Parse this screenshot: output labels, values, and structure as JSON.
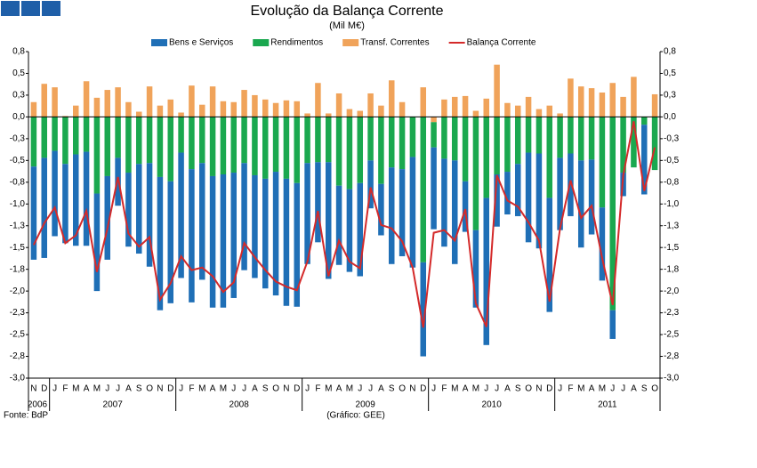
{
  "chart_data": {
    "type": "bar",
    "title": "Evolução da Balança Corrente",
    "subtitle": "(Mil M€)",
    "source": "Fonte: BdP",
    "credit": "(Gráfico: GEE)",
    "categories": [
      "N",
      "D",
      "J",
      "F",
      "M",
      "A",
      "M",
      "J",
      "J",
      "A",
      "S",
      "O",
      "N",
      "D",
      "J",
      "F",
      "M",
      "A",
      "M",
      "J",
      "J",
      "A",
      "S",
      "O",
      "N",
      "D",
      "J",
      "F",
      "M",
      "A",
      "M",
      "J",
      "J",
      "A",
      "S",
      "O",
      "N",
      "D",
      "J",
      "F",
      "M",
      "A",
      "M",
      "J",
      "J",
      "A",
      "S",
      "O",
      "N",
      "D",
      "J",
      "F",
      "M",
      "A",
      "M",
      "J",
      "J",
      "A",
      "S",
      "O"
    ],
    "year_groups": [
      {
        "label": "2006",
        "months": 2
      },
      {
        "label": "2007",
        "months": 12
      },
      {
        "label": "2008",
        "months": 12
      },
      {
        "label": "2009",
        "months": 12
      },
      {
        "label": "2010",
        "months": 12
      },
      {
        "label": "2011",
        "months": 10
      }
    ],
    "series": [
      {
        "name": "Bens e Serviços",
        "color": "#1f6fb6",
        "values": [
          -1.07,
          -1.15,
          -0.98,
          -0.91,
          -1.05,
          -1.08,
          -1.12,
          -0.96,
          -0.55,
          -0.85,
          -1.03,
          -1.19,
          -1.53,
          -1.4,
          -1.44,
          -1.53,
          -1.34,
          -1.51,
          -1.53,
          -1.44,
          -1.23,
          -1.18,
          -1.26,
          -1.42,
          -1.46,
          -1.42,
          -1.16,
          -0.92,
          -1.34,
          -0.91,
          -0.95,
          -1.07,
          -0.55,
          -0.59,
          -1.11,
          -1.0,
          -1.27,
          -1.08,
          -0.94,
          -1.01,
          -1.19,
          -0.58,
          -0.89,
          -1.69,
          -0.6,
          -0.49,
          -0.6,
          -1.03,
          -1.09,
          -1.31,
          -0.83,
          -0.72,
          -1.0,
          -0.86,
          -0.84,
          -0.33,
          -0.27,
          0,
          -0.8,
          0
        ]
      },
      {
        "name": "Rendimentos",
        "color": "#1aa84f",
        "values": [
          -0.57,
          -0.47,
          -0.39,
          -0.54,
          -0.43,
          -0.4,
          -0.88,
          -0.68,
          -0.47,
          -0.64,
          -0.54,
          -0.53,
          -0.69,
          -0.74,
          -0.41,
          -0.6,
          -0.53,
          -0.68,
          -0.66,
          -0.64,
          -0.53,
          -0.67,
          -0.71,
          -0.63,
          -0.71,
          -0.76,
          -0.53,
          -0.52,
          -0.52,
          -0.79,
          -0.83,
          -0.76,
          -0.5,
          -0.77,
          -0.58,
          -0.6,
          -0.46,
          -1.67,
          -0.29,
          -0.48,
          -0.5,
          -0.74,
          -1.3,
          -0.93,
          -0.66,
          -0.63,
          -0.54,
          -0.41,
          -0.42,
          -0.93,
          -0.47,
          -0.42,
          -0.5,
          -0.49,
          -1.04,
          -2.22,
          -0.64,
          -0.58,
          -0.09,
          -0.61
        ]
      },
      {
        "name": "Transf. Correntes",
        "color": "#f0a35a",
        "values": [
          0.17,
          0.38,
          0.34,
          0.01,
          0.13,
          0.41,
          0.22,
          0.31,
          0.34,
          0.17,
          0.06,
          0.35,
          0.13,
          0.2,
          0.05,
          0.36,
          0.14,
          0.35,
          0.18,
          0.17,
          0.31,
          0.25,
          0.2,
          0.16,
          0.19,
          0.18,
          0.04,
          0.39,
          0.04,
          0.27,
          0.09,
          0.07,
          0.27,
          0.13,
          0.42,
          0.17,
          0.0,
          0.34,
          -0.06,
          0.2,
          0.23,
          0.24,
          0.07,
          0.21,
          0.6,
          0.16,
          0.13,
          0.23,
          0.09,
          0.13,
          0.04,
          0.44,
          0.35,
          0.33,
          0.28,
          0.39,
          0.23,
          0.46,
          0.0,
          0.26
        ]
      },
      {
        "name": "Balança Corrente",
        "color": "#d42a2a",
        "line": true,
        "values": [
          -1.47,
          -1.22,
          -1.04,
          -1.45,
          -1.36,
          -1.08,
          -1.78,
          -1.28,
          -0.69,
          -1.34,
          -1.49,
          -1.38,
          -2.1,
          -1.91,
          -1.6,
          -1.76,
          -1.73,
          -1.83,
          -2.01,
          -1.9,
          -1.45,
          -1.61,
          -1.76,
          -1.89,
          -1.95,
          -1.99,
          -1.66,
          -1.08,
          -1.83,
          -1.42,
          -1.66,
          -1.74,
          -0.81,
          -1.24,
          -1.28,
          -1.43,
          -1.73,
          -2.42,
          -1.33,
          -1.3,
          -1.42,
          -1.06,
          -2.14,
          -2.41,
          -0.67,
          -0.96,
          -1.03,
          -1.21,
          -1.42,
          -2.12,
          -1.28,
          -0.73,
          -1.16,
          -1.02,
          -1.62,
          -2.16,
          -0.67,
          -0.05,
          -0.85,
          -0.35
        ]
      }
    ],
    "ylim": [
      -3,
      0.75
    ],
    "yticks": [
      {
        "value": 0.75,
        "label": "0,8"
      },
      {
        "value": 0.5,
        "label": "0,5"
      },
      {
        "value": 0.25,
        "label": "0,3"
      },
      {
        "value": 0,
        "label": "0,0"
      },
      {
        "value": -0.25,
        "label": "-0,3"
      },
      {
        "value": -0.5,
        "label": "-0,5"
      },
      {
        "value": -0.75,
        "label": "-0,8"
      },
      {
        "value": -1,
        "label": "-1,0"
      },
      {
        "value": -1.25,
        "label": "-1,3"
      },
      {
        "value": -1.5,
        "label": "-1,5"
      },
      {
        "value": -1.75,
        "label": "-1,8"
      },
      {
        "value": -2,
        "label": "-2,0"
      },
      {
        "value": -2.25,
        "label": "-2,3"
      },
      {
        "value": -2.5,
        "label": "-2,5"
      },
      {
        "value": -2.75,
        "label": "-2,8"
      },
      {
        "value": -3,
        "label": "-3,0"
      }
    ],
    "grid": false,
    "legend": "top"
  }
}
